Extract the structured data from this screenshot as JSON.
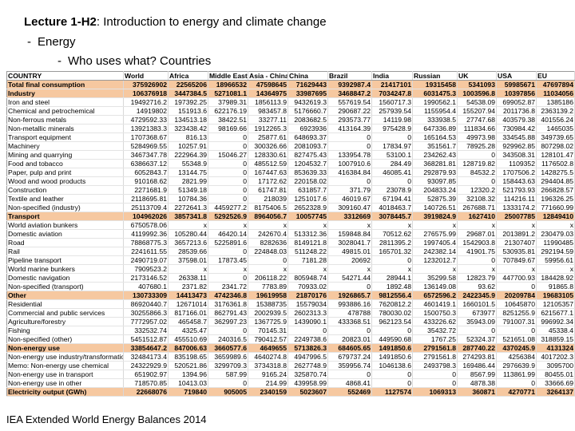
{
  "title": {
    "bold": "Lecture 1-H2",
    "rest": ": Introduction to energy and climate change"
  },
  "bullet1": "Energy",
  "bullet2": "Who uses what? Countries",
  "footer": "IEA Extended World Energy Balances 2014",
  "table": {
    "columns": [
      "COUNTRY",
      "World",
      "Africa",
      "Middle East",
      "Asia - China",
      "China",
      "Brazil",
      "India",
      "Russian",
      "UK",
      "USA",
      "EU"
    ],
    "rows": [
      {
        "hl": true,
        "cells": [
          "Total final consumption",
          "375926902",
          "22565206",
          "18966532",
          "47598645",
          "71629443",
          "9392987.4",
          "21417101",
          "19315458",
          "5341093",
          "59985671",
          "47697894"
        ]
      },
      {
        "hl": true,
        "cells": [
          "Industry",
          "106376918",
          "3447384.5",
          "5271081.1",
          "14364975",
          "33987695",
          "3468847.2",
          "7034247.8",
          "6031475.3",
          "1003596.8",
          "10397856",
          "11034056"
        ]
      },
      {
        "hl": false,
        "cells": [
          "Iron and steel",
          "19492716.2",
          "197392.25",
          "37989.31",
          "1856113.9",
          "9432619.3",
          "557619.54",
          "1560717.3",
          "1990562.1",
          "54538.09",
          "699052.87",
          "1385186"
        ]
      },
      {
        "hl": false,
        "cells": [
          "Chemical and petrochemical",
          "14919802",
          "151913.6",
          "622176.19",
          "983457.8",
          "5176660.7",
          "290687.22",
          "257939.54",
          "1155954.4",
          "155207.94",
          "2011736.8",
          "2363139.2"
        ]
      },
      {
        "hl": false,
        "cells": [
          "Non-ferrous metals",
          "4729592.33",
          "134513.18",
          "38422.51",
          "33277.11",
          "2083682.5",
          "293573.77",
          "14119.98",
          "333938.5",
          "27747.68",
          "403579.38",
          "401556.24"
        ]
      },
      {
        "hl": false,
        "cells": [
          "Non-metallic minerals",
          "13921383.3",
          "323438.42",
          "98169.66",
          "1912265.3",
          "6923936",
          "413164.39",
          "975428.9",
          "647336.89",
          "111834.66",
          "730984.42",
          "1465035"
        ]
      },
      {
        "hl": false,
        "cells": [
          "Transport equipment",
          "1707368.67",
          "816.13",
          "0",
          "25877.61",
          "648693.37",
          "0",
          "0",
          "165164.53",
          "49973.98",
          "334545.88",
          "349739.65"
        ]
      },
      {
        "hl": false,
        "cells": [
          "Machinery",
          "5284969.55",
          "10257.91",
          "0",
          "300326.66",
          "2081093.7",
          "0",
          "17834.97",
          "351561.7",
          "78925.28",
          "929962.85",
          "807298.02"
        ]
      },
      {
        "hl": false,
        "cells": [
          "Mining and quarrying",
          "3467347.78",
          "222964.39",
          "15046.27",
          "128330.61",
          "827475.43",
          "133954.78",
          "53100.1",
          "234262.43",
          "0",
          "343508.31",
          "128101.47"
        ]
      },
      {
        "hl": false,
        "cells": [
          "Food and tobacco",
          "6386637.12",
          "55348.9",
          "0",
          "485512.59",
          "1204532.7",
          "1007910.6",
          "284.49",
          "368281.81",
          "128719.82",
          "1109352",
          "1176502.8"
        ]
      },
      {
        "hl": false,
        "cells": [
          "Paper, pulp and print",
          "6052843.7",
          "13144.75",
          "0",
          "167447.63",
          "853639.33",
          "416384.84",
          "46085.41",
          "292879.93",
          "84532.2",
          "1707506.2",
          "1428275.5"
        ]
      },
      {
        "hl": false,
        "cells": [
          "Wood and wood products",
          "910168.62",
          "2821.99",
          "0",
          "17172.62",
          "220158.02",
          "0",
          "0",
          "93097.85",
          "0",
          "158443.63",
          "294404.85"
        ]
      },
      {
        "hl": false,
        "cells": [
          "Construction",
          "2271681.9",
          "51349.18",
          "0",
          "61747.81",
          "631857.7",
          "371.79",
          "23078.9",
          "204833.24",
          "12320.2",
          "521793.93",
          "266828.57"
        ]
      },
      {
        "hl": false,
        "cells": [
          "Textile and leather",
          "2118695.81",
          "10784.36",
          "0",
          "218039",
          "1251017.6",
          "46019.67",
          "67194.41",
          "52875.39",
          "32108.32",
          "114216.11",
          "196326.25"
        ]
      },
      {
        "hl": false,
        "cells": [
          "Non-specified (industry)",
          "25113709.4",
          "2272641.3",
          "4459277.2",
          "8175406.5",
          "2652328.9",
          "309160.47",
          "4018463.7",
          "140726.51",
          "267688.71",
          "1333174.2",
          "771660.99"
        ]
      },
      {
        "hl": true,
        "cells": [
          "Transport",
          "104962026",
          "3857341.8",
          "5292526.9",
          "8964056.7",
          "10057745",
          "3312669",
          "3078445.7",
          "3919824.9",
          "1627410",
          "25007785",
          "12849410"
        ]
      },
      {
        "hl": false,
        "cells": [
          "World aviation bunkers",
          "6750578.06",
          "x",
          "x",
          "x",
          "x",
          "x",
          "x",
          "x",
          "x",
          "x",
          "x"
        ]
      },
      {
        "hl": false,
        "cells": [
          "Domestic aviation",
          "4119992.36",
          "105280.44",
          "46420.14",
          "242670.4",
          "513312.36",
          "159848.84",
          "70512.62",
          "276575.99",
          "29687.01",
          "2013891.2",
          "230479.03"
        ]
      },
      {
        "hl": false,
        "cells": [
          "Road",
          "78868775.3",
          "3657213.6",
          "5225891.6",
          "8282636",
          "8149121.8",
          "3028041.7",
          "2811395.2",
          "1997405.4",
          "1542903.8",
          "21307407",
          "11990485"
        ]
      },
      {
        "hl": false,
        "cells": [
          "Rail",
          "2241611.55",
          "28539.66",
          "0",
          "224848.03",
          "511248.22",
          "49815.01",
          "165701.32",
          "242382.14",
          "41901.75",
          "530935.81",
          "292194.59"
        ]
      },
      {
        "hl": false,
        "cells": [
          "Pipeline transport",
          "2490719.07",
          "37598.01",
          "17873.45",
          "0",
          "7181.28",
          "20692",
          "0",
          "1232012.7",
          "0",
          "707849.67",
          "59956.61"
        ]
      },
      {
        "hl": false,
        "cells": [
          "World marine bunkers",
          "7909523.2",
          "x",
          "x",
          "x",
          "x",
          "x",
          "x",
          "x",
          "x",
          "x",
          "x"
        ]
      },
      {
        "hl": false,
        "cells": [
          "Domestic navigation",
          "2173146.52",
          "26338.11",
          "0",
          "206118.22",
          "805948.74",
          "54271.44",
          "28944.1",
          "35299.58",
          "12823.79",
          "447700.93",
          "184428.92"
        ]
      },
      {
        "hl": false,
        "cells": [
          "Non-specified (transport)",
          "407680.1",
          "2371.82",
          "2341.72",
          "7783.89",
          "70933.02",
          "0",
          "1892.48",
          "136149.08",
          "93.62",
          "0",
          "91865.8"
        ]
      },
      {
        "hl": true,
        "cells": [
          "Other",
          "130733309",
          "14413473",
          "4742346.8",
          "19619958",
          "21870176",
          "1926865.7",
          "9812556.4",
          "6572596.2",
          "2422345.9",
          "20209784",
          "19683105"
        ]
      },
      {
        "hl": false,
        "cells": [
          "Residential",
          "86920440.7",
          "12671014",
          "3176361.8",
          "15388735",
          "15579034",
          "993886.16",
          "7620812.2",
          "4601419.1",
          "1660101.5",
          "10645870",
          "12105357"
        ]
      },
      {
        "hl": false,
        "cells": [
          "Commercial and public services",
          "30255866.3",
          "817166.01",
          "862791.43",
          "2002939.5",
          "2602313.3",
          "478788",
          "780030.02",
          "1500750.3",
          "673977",
          "8251255.9",
          "6215677.1"
        ]
      },
      {
        "hl": false,
        "cells": [
          "Agriculture/forestry",
          "7772957.02",
          "465458.7",
          "362997.23",
          "1367725.9",
          "1439090.1",
          "433368.51",
          "962123.54",
          "433226.62",
          "35943.09",
          "791007.31",
          "996992.34"
        ]
      },
      {
        "hl": false,
        "cells": [
          "Fishing",
          "332532.74",
          "4325.47",
          "0",
          "70145.31",
          "0",
          "0",
          "0",
          "35432.72",
          "0",
          "0",
          "45338.4"
        ]
      },
      {
        "hl": false,
        "cells": [
          "Non-specified (other)",
          "5451512.87",
          "455510.69",
          "240316.5",
          "790412.57",
          "2249738.6",
          "20823.01",
          "449590.68",
          "1767.25",
          "52324.37",
          "521651.08",
          "318859.15"
        ]
      },
      {
        "hl": true,
        "cells": [
          "Non-energy use",
          "33854647.2",
          "847006.63",
          "3660577.6",
          "4649655",
          "5713826.3",
          "684605.65",
          "1491850.6",
          "2791561.8",
          "287740.22",
          "4370245.9",
          "4131324"
        ]
      },
      {
        "hl": false,
        "cells": [
          "Non-energy use industry/transformation",
          "32484173.4",
          "835198.65",
          "3659989.6",
          "4640274.8",
          "4947996.5",
          "679737.24",
          "1491850.6",
          "2791561.8",
          "274293.81",
          "4256384",
          "4017202.3"
        ]
      },
      {
        "hl": false,
        "cells": [
          "Memo: Non-energy use chemical",
          "24322929.9",
          "520521.86",
          "3299709.3",
          "3734318.8",
          "2627748.9",
          "359956.74",
          "1046138.6",
          "2493798.3",
          "169486.44",
          "2976639.9",
          "3095700"
        ]
      },
      {
        "hl": false,
        "cells": [
          "Non-energy use in transport",
          "651902.97",
          "1394.96",
          "587.99",
          "9165.24",
          "325870.74",
          "0",
          "0",
          "0",
          "8567.99",
          "113861.99",
          "80455.01"
        ]
      },
      {
        "hl": false,
        "cells": [
          "Non-energy use in other",
          "718570.85",
          "10413.03",
          "0",
          "214.99",
          "439958.99",
          "4868.41",
          "0",
          "0",
          "4878.38",
          "0",
          "33666.69"
        ]
      },
      {
        "hl": true,
        "cells": [
          "Electricity output (GWh)",
          "22668076",
          "719840",
          "905005",
          "2340159",
          "5023607",
          "552469",
          "1127574",
          "1069313",
          "360871",
          "4270771",
          "3264137"
        ]
      }
    ]
  }
}
